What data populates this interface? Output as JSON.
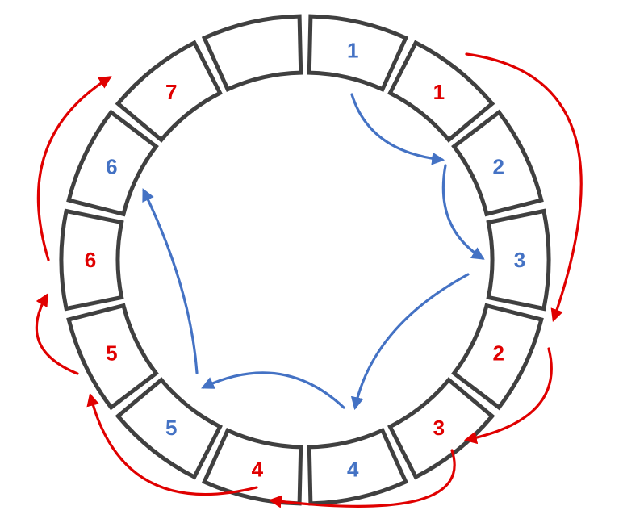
{
  "colors": {
    "blue": "#4472c4",
    "red": "#e00000",
    "ring": "#404040"
  },
  "segments": [
    {
      "label": "1",
      "color": "blue"
    },
    {
      "label": "1",
      "color": "red"
    },
    {
      "label": "2",
      "color": "blue"
    },
    {
      "label": "3",
      "color": "blue"
    },
    {
      "label": "2",
      "color": "red"
    },
    {
      "label": "3",
      "color": "red"
    },
    {
      "label": "4",
      "color": "blue"
    },
    {
      "label": "4",
      "color": "red"
    },
    {
      "label": "5",
      "color": "blue"
    },
    {
      "label": "5",
      "color": "red"
    },
    {
      "label": "6",
      "color": "red"
    },
    {
      "label": "6",
      "color": "blue"
    },
    {
      "label": "7",
      "color": "red"
    },
    {
      "label": "",
      "color": "none"
    }
  ],
  "blue_sequence": [
    "1",
    "2",
    "3",
    "4",
    "5",
    "6"
  ],
  "red_sequence": [
    "1",
    "2",
    "3",
    "4",
    "5",
    "6",
    "7"
  ]
}
